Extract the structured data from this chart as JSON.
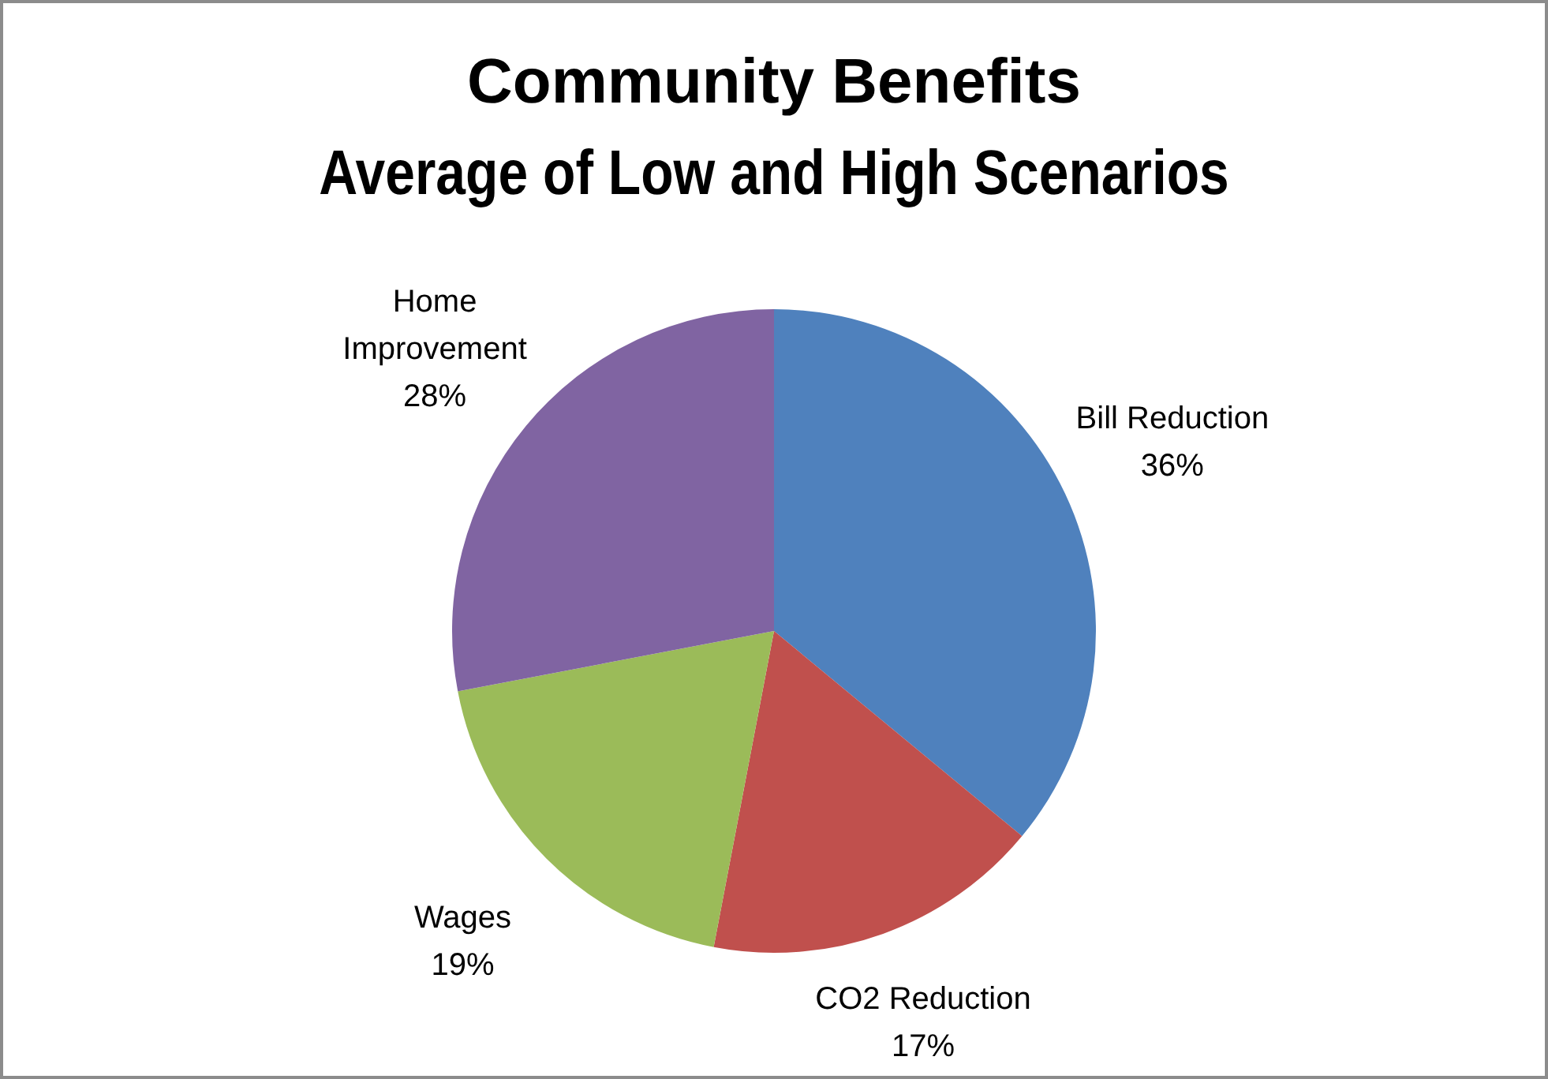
{
  "chart_data": {
    "type": "pie",
    "title": "Community Benefits",
    "subtitle": "Average of Low and High Scenarios",
    "categories": [
      "Bill Reduction",
      "CO2 Reduction",
      "Wages",
      "Home Improvement"
    ],
    "values": [
      36,
      17,
      19,
      28
    ],
    "colors": [
      "#4f81bd",
      "#c0504d",
      "#9bbb59",
      "#8064a2"
    ],
    "value_labels": [
      "36%",
      "17%",
      "19%",
      "28%"
    ],
    "legend": false
  }
}
